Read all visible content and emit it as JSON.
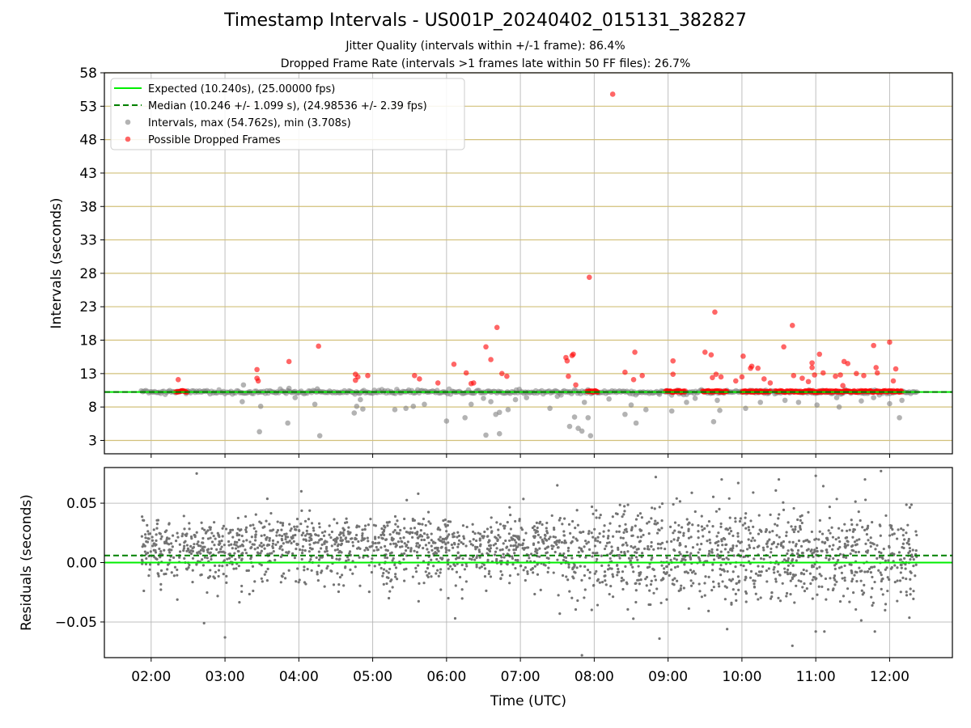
{
  "figure": {
    "title": "Timestamp Intervals - US001P_20240402_015131_382827",
    "subtitle_1": "Jitter Quality (intervals within +/-1 frame): 86.4%",
    "subtitle_2": "Dropped Frame Rate (intervals >1 frames late within 50 FF files): 26.7%"
  },
  "chart_data": [
    {
      "type": "scatter",
      "xlabel": "",
      "ylabel": "Intervals (seconds)",
      "xlim": [
        "01:22",
        "12:51"
      ],
      "ylim": [
        1,
        58
      ],
      "yticks": [
        3,
        8,
        13,
        18,
        23,
        28,
        33,
        38,
        43,
        48,
        53,
        58
      ],
      "xticks": [
        "02:00",
        "03:00",
        "04:00",
        "05:00",
        "06:00",
        "07:00",
        "08:00",
        "09:00",
        "10:00",
        "11:00",
        "12:00"
      ],
      "grid": true,
      "legend_position": "top-left",
      "legend": [
        "Expected (10.240s), (25.00000 fps)",
        "Median (10.246 +/- 1.099 s), (24.98536 +/- 2.39 fps)",
        "Intervals, max (54.762s), min (3.708s)",
        "Possible Dropped Frames"
      ],
      "expected_line": 10.24,
      "median_line": 10.246,
      "interval_range": [
        "01:52",
        "12:22"
      ],
      "series": [
        {
          "name": "Intervals, max (54.762s), min (3.708s)",
          "color": "#808080",
          "points": [
            [
              "03:28",
              4.3
            ],
            [
              "03:51",
              5.6
            ],
            [
              "04:17",
              3.7
            ],
            [
              "05:18",
              7.6
            ],
            [
              "05:27",
              7.8
            ],
            [
              "06:00",
              5.9
            ],
            [
              "06:15",
              6.4
            ],
            [
              "06:32",
              3.8
            ],
            [
              "06:40",
              6.9
            ],
            [
              "06:43",
              4.0
            ],
            [
              "06:50",
              7.6
            ],
            [
              "07:24",
              7.8
            ],
            [
              "07:40",
              5.1
            ],
            [
              "07:44",
              6.5
            ],
            [
              "07:47",
              4.8
            ],
            [
              "07:50",
              4.4
            ],
            [
              "07:55",
              6.4
            ],
            [
              "07:57",
              3.7
            ],
            [
              "08:25",
              6.9
            ],
            [
              "08:34",
              5.6
            ],
            [
              "08:42",
              7.6
            ],
            [
              "09:03",
              7.4
            ],
            [
              "09:37",
              5.8
            ],
            [
              "09:42",
              7.5
            ],
            [
              "10:03",
              7.8
            ],
            [
              "11:19",
              8.0
            ],
            [
              "12:00",
              8.5
            ],
            [
              "12:08",
              6.4
            ],
            [
              "03:15",
              11.3
            ],
            [
              "03:14",
              8.8
            ],
            [
              "03:29",
              8.1
            ],
            [
              "03:52",
              10.8
            ],
            [
              "03:57",
              9.4
            ],
            [
              "04:13",
              8.4
            ],
            [
              "04:15",
              10.7
            ],
            [
              "04:45",
              7.1
            ],
            [
              "04:47",
              8.1
            ],
            [
              "04:50",
              9.1
            ],
            [
              "04:52",
              7.7
            ],
            [
              "05:33",
              8.1
            ],
            [
              "05:42",
              8.4
            ],
            [
              "06:20",
              8.4
            ],
            [
              "06:30",
              9.3
            ],
            [
              "06:36",
              8.8
            ],
            [
              "06:43",
              7.2
            ],
            [
              "06:56",
              9.1
            ],
            [
              "07:05",
              9.4
            ],
            [
              "07:30",
              9.6
            ],
            [
              "07:52",
              8.7
            ],
            [
              "08:12",
              9.2
            ],
            [
              "08:30",
              8.3
            ],
            [
              "08:53",
              9.9
            ],
            [
              "09:15",
              8.7
            ],
            [
              "09:22",
              9.3
            ],
            [
              "09:40",
              9.0
            ],
            [
              "10:15",
              8.7
            ],
            [
              "10:35",
              9.0
            ],
            [
              "10:46",
              8.7
            ],
            [
              "11:01",
              8.3
            ],
            [
              "11:17",
              9.4
            ],
            [
              "11:37",
              8.9
            ],
            [
              "11:47",
              9.4
            ],
            [
              "12:10",
              9.0
            ]
          ]
        },
        {
          "name": "Possible Dropped Frames",
          "color": "#ff0000",
          "points": [
            [
              "02:22",
              12.1
            ],
            [
              "03:26",
              13.6
            ],
            [
              "03:26",
              12.3
            ],
            [
              "03:27",
              11.9
            ],
            [
              "03:52",
              14.8
            ],
            [
              "04:16",
              17.1
            ],
            [
              "04:46",
              12.9
            ],
            [
              "04:46",
              12.0
            ],
            [
              "04:48",
              12.5
            ],
            [
              "04:56",
              12.7
            ],
            [
              "05:34",
              12.7
            ],
            [
              "05:38",
              12.2
            ],
            [
              "05:53",
              11.6
            ],
            [
              "06:06",
              14.4
            ],
            [
              "06:16",
              13.1
            ],
            [
              "06:20",
              11.5
            ],
            [
              "06:22",
              11.6
            ],
            [
              "06:32",
              17.0
            ],
            [
              "06:36",
              15.1
            ],
            [
              "06:41",
              19.9
            ],
            [
              "06:45",
              13.0
            ],
            [
              "06:49",
              12.6
            ],
            [
              "07:37",
              15.4
            ],
            [
              "07:38",
              14.9
            ],
            [
              "07:42",
              15.7
            ],
            [
              "07:43",
              15.9
            ],
            [
              "07:39",
              12.6
            ],
            [
              "07:45",
              11.3
            ],
            [
              "07:56",
              27.4
            ],
            [
              "08:15",
              54.8
            ],
            [
              "08:25",
              13.2
            ],
            [
              "08:32",
              12.1
            ],
            [
              "08:33",
              16.2
            ],
            [
              "08:39",
              12.7
            ],
            [
              "09:04",
              14.9
            ],
            [
              "09:04",
              12.9
            ],
            [
              "09:30",
              16.2
            ],
            [
              "09:35",
              15.8
            ],
            [
              "09:36",
              12.4
            ],
            [
              "09:38",
              22.2
            ],
            [
              "09:39",
              12.9
            ],
            [
              "09:43",
              12.5
            ],
            [
              "09:55",
              11.9
            ],
            [
              "10:01",
              15.6
            ],
            [
              "10:00",
              12.5
            ],
            [
              "10:07",
              13.8
            ],
            [
              "10:08",
              14.1
            ],
            [
              "10:13",
              13.8
            ],
            [
              "10:18",
              12.2
            ],
            [
              "10:23",
              11.6
            ],
            [
              "10:34",
              17.0
            ],
            [
              "10:41",
              20.2
            ],
            [
              "10:42",
              12.7
            ],
            [
              "10:49",
              12.3
            ],
            [
              "10:54",
              11.8
            ],
            [
              "10:57",
              14.6
            ],
            [
              "10:57",
              13.9
            ],
            [
              "10:59",
              12.8
            ],
            [
              "11:03",
              15.9
            ],
            [
              "11:06",
              13.1
            ],
            [
              "11:16",
              12.6
            ],
            [
              "11:20",
              12.8
            ],
            [
              "11:23",
              14.8
            ],
            [
              "11:26",
              14.5
            ],
            [
              "11:33",
              13.0
            ],
            [
              "11:39",
              12.7
            ],
            [
              "11:47",
              17.2
            ],
            [
              "11:49",
              13.9
            ],
            [
              "11:50",
              13.1
            ],
            [
              "12:00",
              17.7
            ],
            [
              "12:03",
              11.9
            ],
            [
              "12:05",
              13.7
            ],
            [
              "11:22",
              11.2
            ]
          ]
        }
      ]
    },
    {
      "type": "scatter",
      "xlabel": "Time (UTC)",
      "ylabel": "Residuals (seconds)",
      "xlim": [
        "01:22",
        "12:51"
      ],
      "ylim": [
        -0.08,
        0.08
      ],
      "yticks": [
        "0.05",
        "0.00",
        "−0.05"
      ],
      "ytick_values": [
        0.05,
        0.0,
        -0.05
      ],
      "xticks": [
        "02:00",
        "03:00",
        "04:00",
        "05:00",
        "06:00",
        "07:00",
        "08:00",
        "09:00",
        "10:00",
        "11:00",
        "12:00"
      ],
      "grid": true,
      "expected_line": 0.0,
      "median_line": 0.006,
      "series": [
        {
          "name": "Residuals",
          "color": "#737373",
          "distribution": "dense scatter of roughly 2300 points between 01:52 and 12:22, concentrated between about -0.03 and +0.04 s, with a cluster near +0.02 s before 07:40",
          "outliers": [
            [
              "02:37",
              0.075
            ],
            [
              "02:43",
              -0.051
            ],
            [
              "03:00",
              -0.063
            ],
            [
              "04:02",
              0.06
            ],
            [
              "05:37",
              0.058
            ],
            [
              "06:07",
              -0.047
            ],
            [
              "07:30",
              0.065
            ],
            [
              "07:32",
              -0.043
            ],
            [
              "07:50",
              -0.078
            ],
            [
              "08:50",
              0.072
            ],
            [
              "08:53",
              -0.064
            ],
            [
              "09:48",
              -0.056
            ],
            [
              "09:57",
              0.067
            ],
            [
              "10:30",
              0.07
            ],
            [
              "10:41",
              -0.07
            ],
            [
              "11:00",
              0.073
            ],
            [
              "11:07",
              -0.058
            ],
            [
              "11:40",
              0.07
            ],
            [
              "11:48",
              -0.058
            ],
            [
              "11:53",
              0.077
            ]
          ]
        }
      ]
    }
  ]
}
